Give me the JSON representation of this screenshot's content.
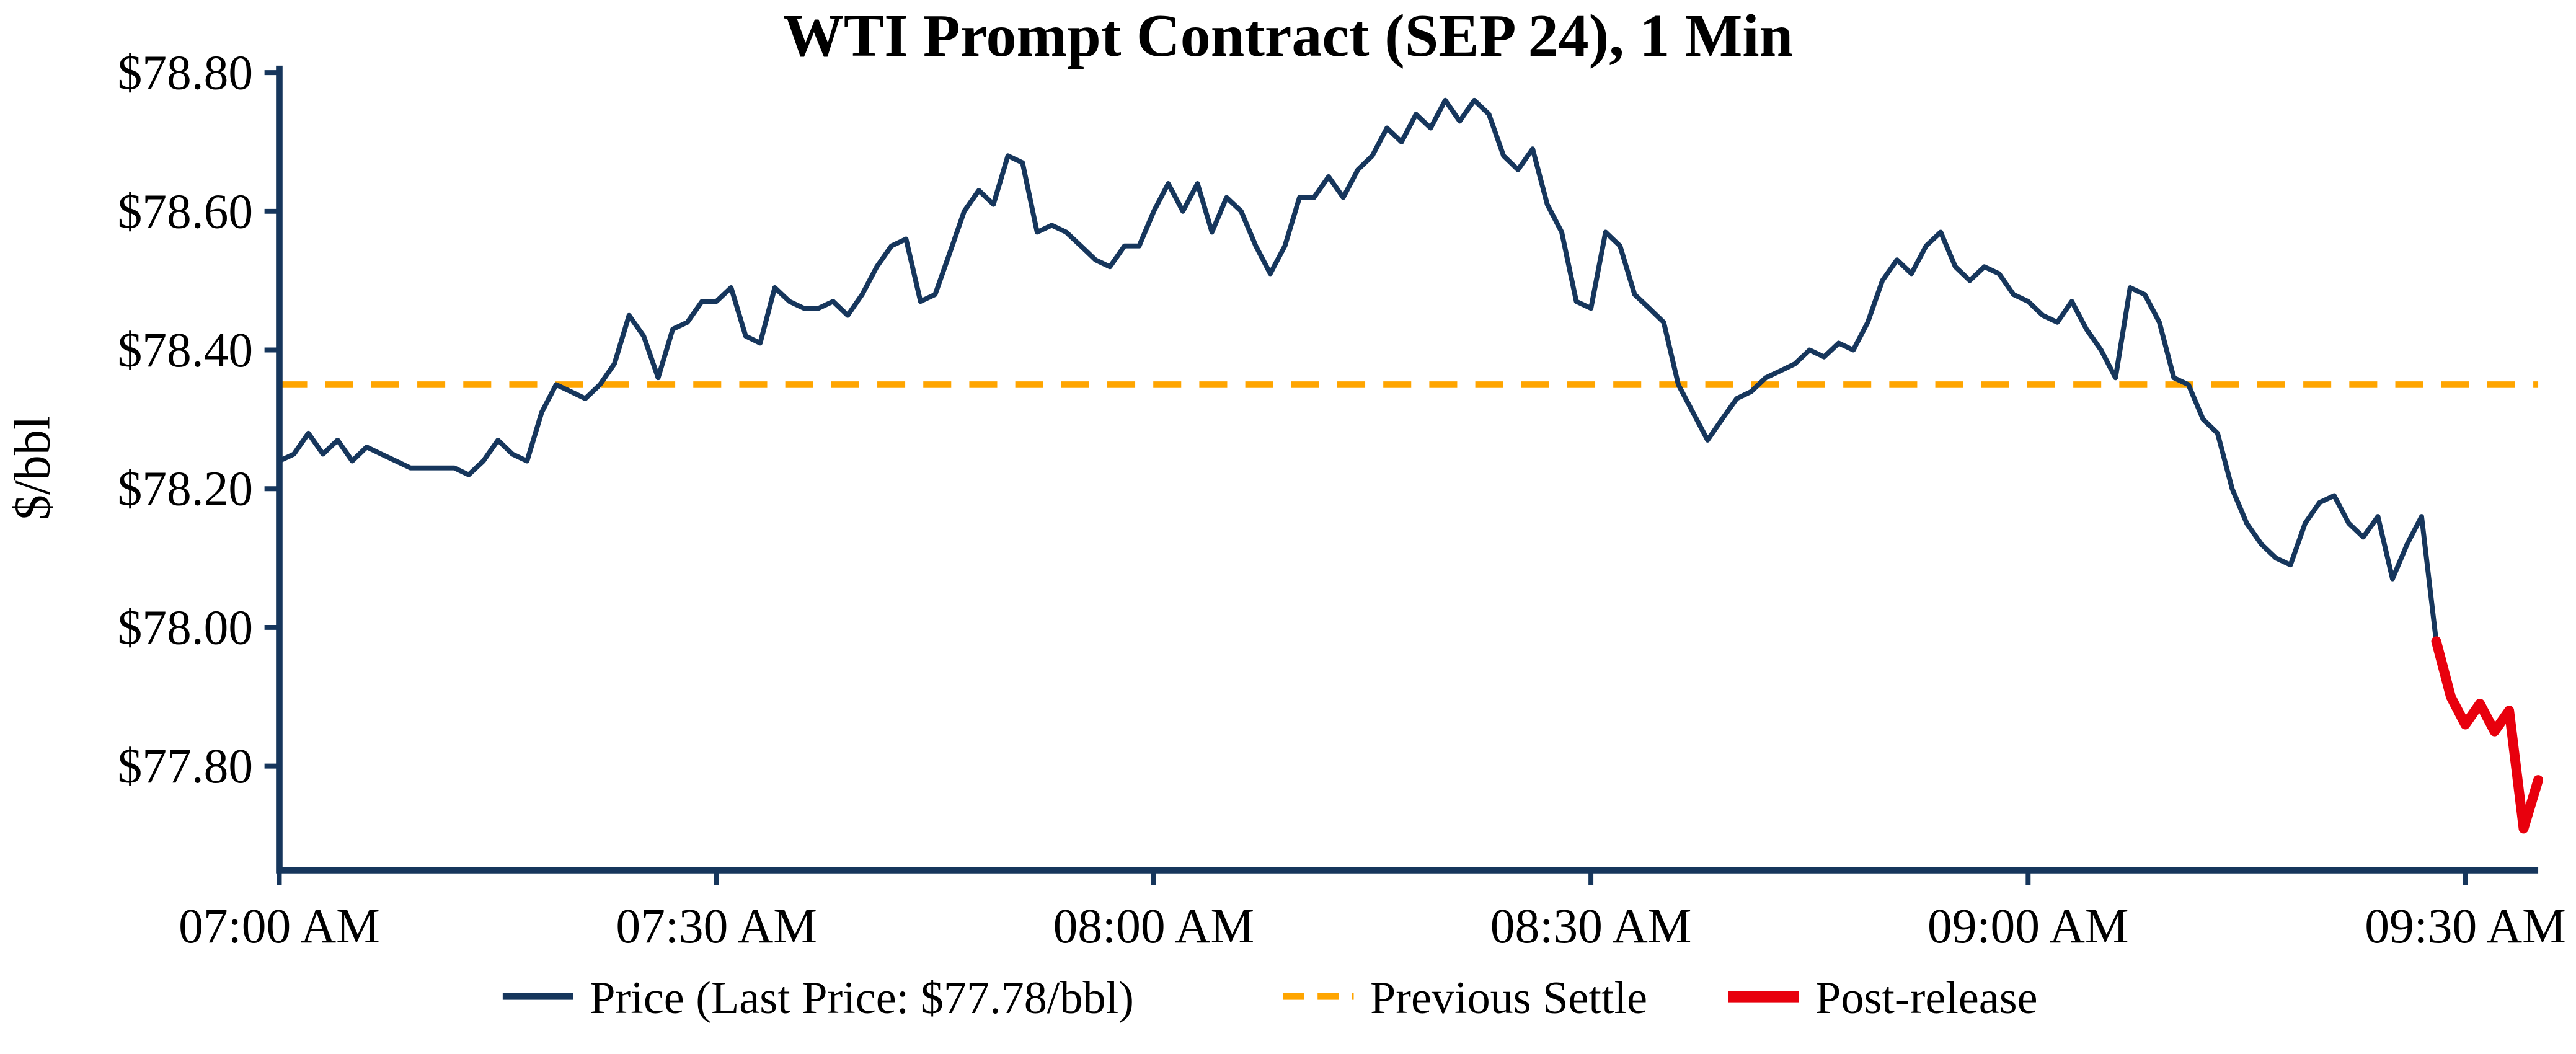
{
  "page": {
    "background": "#ffffff"
  },
  "chart_data": {
    "type": "line",
    "title": "WTI Prompt Contract (SEP 24), 1 Min",
    "xlabel": "",
    "ylabel": "$/bbl",
    "x_unit": "minutes from 07:00 AM, 1-minute bars",
    "xlim": [
      0,
      155
    ],
    "ylim": [
      77.65,
      78.81
    ],
    "grid": false,
    "axis_color": "#16365c",
    "xticks": {
      "values": [
        0,
        30,
        60,
        90,
        120,
        150
      ],
      "labels": [
        "07:00 AM",
        "07:30 AM",
        "08:00 AM",
        "08:30 AM",
        "09:00 AM",
        "09:30 AM"
      ]
    },
    "yticks": {
      "values": [
        77.8,
        78.0,
        78.2,
        78.4,
        78.6,
        78.8
      ],
      "labels": [
        "$77.80",
        "$78.00",
        "$78.20",
        "$78.40",
        "$78.60",
        "$78.80"
      ]
    },
    "previous_settle": 78.35,
    "last_price_label": "$77.78/bbl",
    "series": [
      {
        "name": "Price",
        "color": "#16365c",
        "width": 3,
        "x_start": 0,
        "values": [
          78.24,
          78.25,
          78.28,
          78.25,
          78.27,
          78.24,
          78.26,
          78.25,
          78.24,
          78.23,
          78.23,
          78.23,
          78.23,
          78.22,
          78.24,
          78.27,
          78.25,
          78.24,
          78.31,
          78.35,
          78.34,
          78.33,
          78.35,
          78.38,
          78.45,
          78.42,
          78.36,
          78.43,
          78.44,
          78.47,
          78.47,
          78.49,
          78.42,
          78.41,
          78.49,
          78.47,
          78.46,
          78.46,
          78.47,
          78.45,
          78.48,
          78.52,
          78.55,
          78.56,
          78.47,
          78.48,
          78.54,
          78.6,
          78.63,
          78.61,
          78.68,
          78.67,
          78.57,
          78.58,
          78.57,
          78.55,
          78.53,
          78.52,
          78.55,
          78.55,
          78.6,
          78.64,
          78.6,
          78.64,
          78.57,
          78.62,
          78.6,
          78.55,
          78.51,
          78.55,
          78.62,
          78.62,
          78.65,
          78.62,
          78.66,
          78.68,
          78.72,
          78.7,
          78.74,
          78.72,
          78.76,
          78.73,
          78.76,
          78.74,
          78.68,
          78.66,
          78.69,
          78.61,
          78.57,
          78.47,
          78.46,
          78.57,
          78.55,
          78.48,
          78.46,
          78.44,
          78.35,
          78.31,
          78.27,
          78.3,
          78.33,
          78.34,
          78.36,
          78.37,
          78.38,
          78.4,
          78.39,
          78.41,
          78.4,
          78.44,
          78.5,
          78.53,
          78.51,
          78.55,
          78.57,
          78.52,
          78.5,
          78.52,
          78.51,
          78.48,
          78.47,
          78.45,
          78.44,
          78.47,
          78.43,
          78.4,
          78.36,
          78.49,
          78.48,
          78.44,
          78.36,
          78.35,
          78.3,
          78.28,
          78.2,
          78.15,
          78.12,
          78.1,
          78.09,
          78.15,
          78.18,
          78.19,
          78.15,
          78.13,
          78.16,
          78.07,
          78.12,
          78.16,
          77.98
        ]
      },
      {
        "name": "Post-release",
        "color": "#e8000d",
        "width": 6,
        "x_start": 148,
        "values": [
          77.98,
          77.9,
          77.86,
          77.89,
          77.85,
          77.88,
          77.71,
          77.78
        ]
      }
    ],
    "settle_line": {
      "value": 78.35,
      "color": "#ffa500",
      "style": "dashed",
      "width": 4
    },
    "legend": {
      "position": "bottom-center",
      "items": [
        {
          "label": "Price (Last Price: $77.78/bbl)",
          "color": "#16365c",
          "style": "solid"
        },
        {
          "label": "Previous Settle",
          "color": "#ffa500",
          "style": "dashed"
        },
        {
          "label": "Post-release",
          "color": "#e8000d",
          "style": "solid-thick"
        }
      ]
    }
  }
}
